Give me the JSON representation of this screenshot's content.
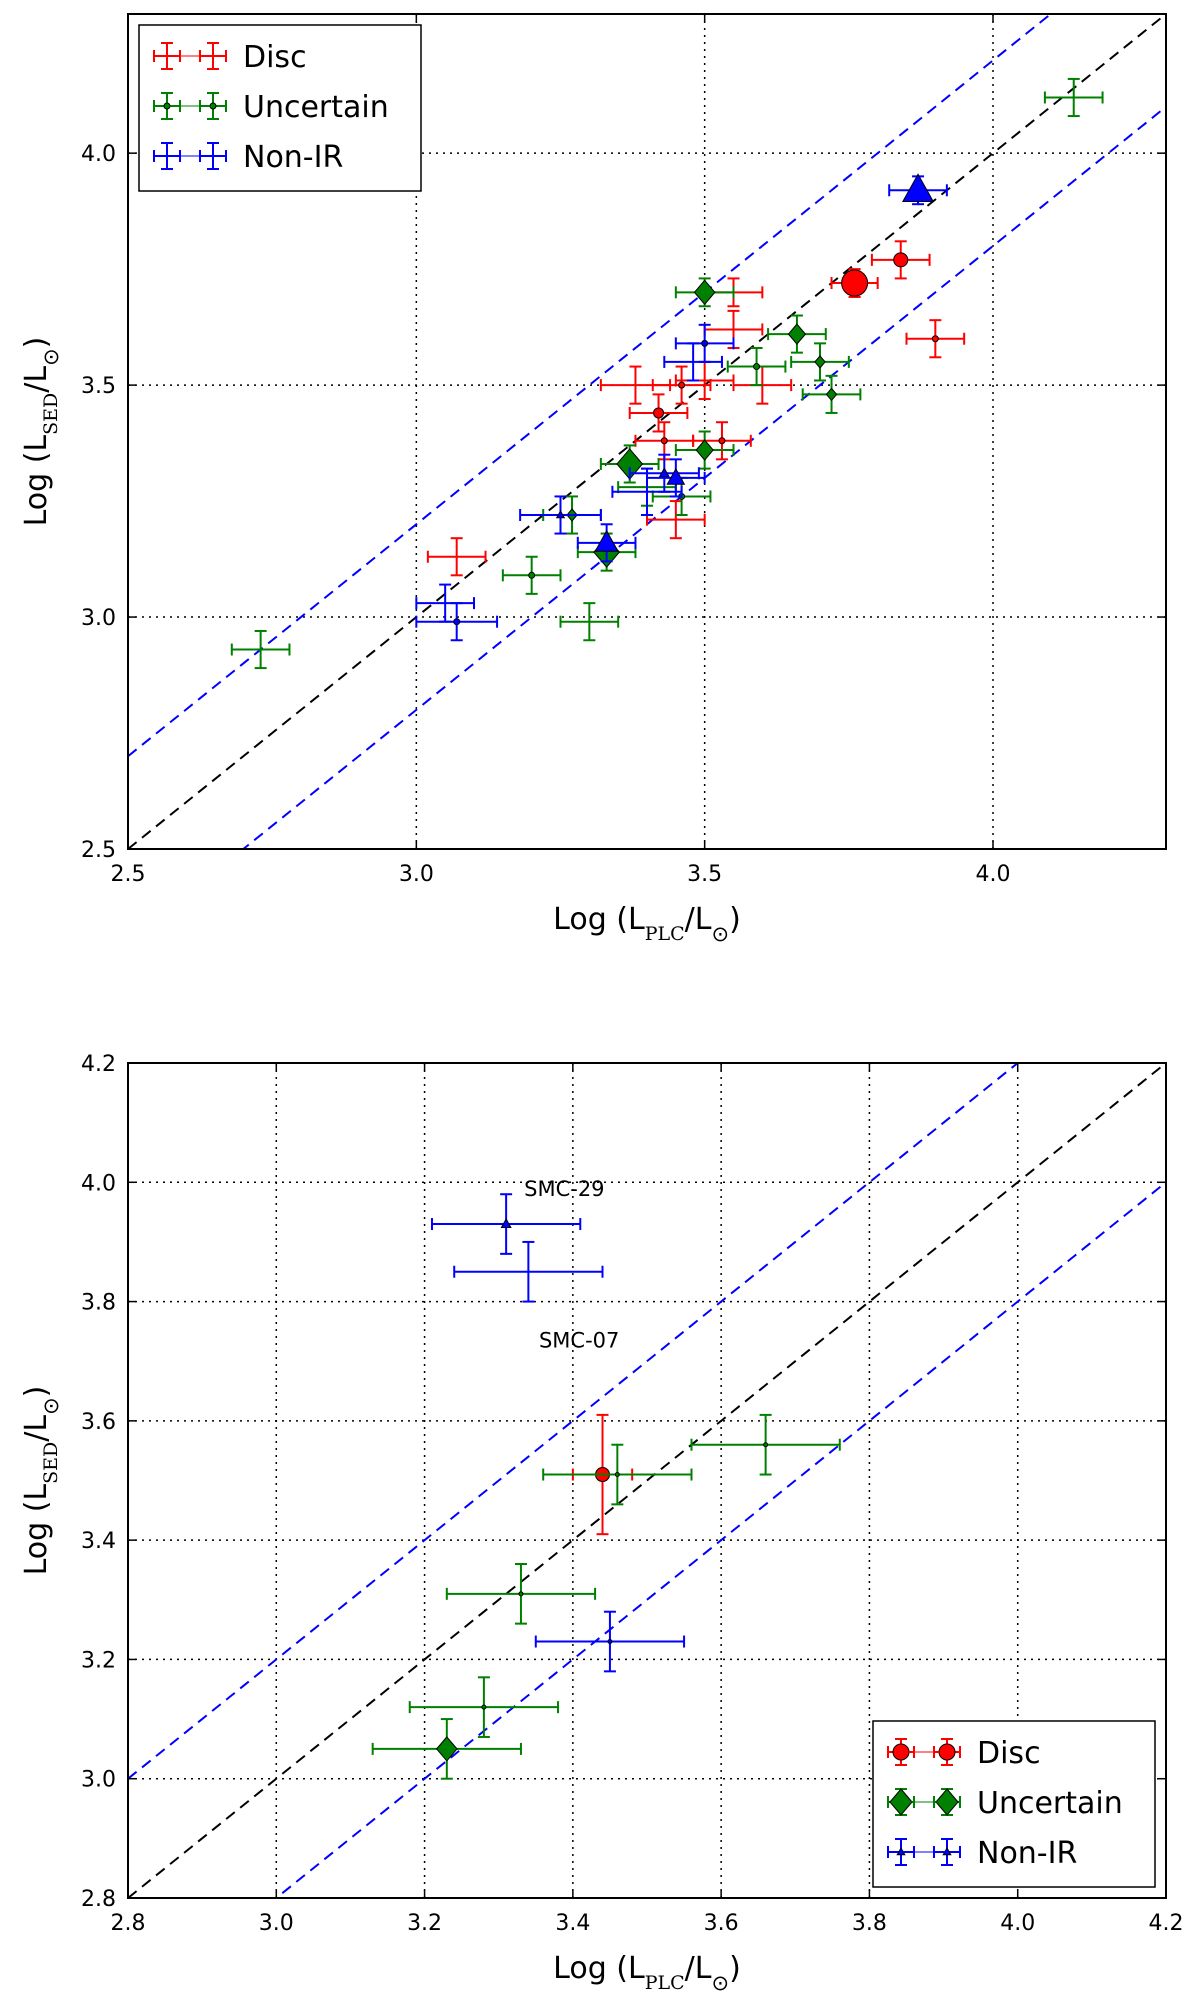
{
  "chart_data": [
    {
      "type": "scatter",
      "title": "",
      "xlabel": {
        "prefix": "Log (L",
        "sub": "PLC",
        "mid": "/L",
        "sun": "⊙",
        "suffix": ")"
      },
      "ylabel": {
        "prefix": "Log (L",
        "sub": "SED",
        "mid": "/L",
        "sun": "⊙",
        "suffix": ")"
      },
      "xlim": [
        2.5,
        4.3
      ],
      "ylim": [
        2.5,
        4.3
      ],
      "xticks": [
        2.5,
        3.0,
        3.5,
        4.0
      ],
      "xtick_labels": [
        "2.5",
        "3.0",
        "3.5",
        "4.0"
      ],
      "yticks": [
        2.5,
        3.0,
        3.5,
        4.0
      ],
      "ytick_labels": [
        "2.5",
        "3.0",
        "3.5",
        "4.0"
      ],
      "grid": "dotted",
      "legend_position": "top-left",
      "legend": [
        {
          "label": "Disc",
          "series": "disc",
          "marker": "plus",
          "color": "#ff0000"
        },
        {
          "label": "Uncertain",
          "series": "uncertain",
          "marker": "dot",
          "color": "#008000"
        },
        {
          "label": "Non-IR",
          "series": "nonir",
          "marker": "plus",
          "color": "#0000ff"
        }
      ],
      "reference_lines": [
        {
          "name": "equality-line",
          "offset": 0.0,
          "color": "#000000"
        },
        {
          "name": "upper-bound-line",
          "offset": 0.2,
          "color": "#0000ff"
        },
        {
          "name": "lower-bound-line",
          "offset": -0.2,
          "color": "#0000ff"
        }
      ],
      "series": [
        {
          "name": "disc",
          "color": "#ff0000",
          "points": [
            {
              "x": 3.07,
              "y": 3.13,
              "xerr": 0.05,
              "yerr": 0.04,
              "marker": "none",
              "size": 0
            },
            {
              "x": 3.38,
              "y": 3.5,
              "xerr": 0.06,
              "yerr": 0.04,
              "marker": "none",
              "size": 0
            },
            {
              "x": 3.42,
              "y": 3.44,
              "xerr": 0.05,
              "yerr": 0.04,
              "marker": "circle",
              "size": 5
            },
            {
              "x": 3.46,
              "y": 3.5,
              "xerr": 0.05,
              "yerr": 0.04,
              "marker": "dot",
              "size": 3
            },
            {
              "x": 3.43,
              "y": 3.38,
              "xerr": 0.05,
              "yerr": 0.04,
              "marker": "dot",
              "size": 3
            },
            {
              "x": 3.5,
              "y": 3.51,
              "xerr": 0.05,
              "yerr": 0.04,
              "marker": "none",
              "size": 0
            },
            {
              "x": 3.53,
              "y": 3.38,
              "xerr": 0.05,
              "yerr": 0.04,
              "marker": "dot",
              "size": 3
            },
            {
              "x": 3.55,
              "y": 3.62,
              "xerr": 0.05,
              "yerr": 0.04,
              "marker": "none",
              "size": 0
            },
            {
              "x": 3.55,
              "y": 3.7,
              "xerr": 0.05,
              "yerr": 0.03,
              "marker": "none",
              "size": 0
            },
            {
              "x": 3.45,
              "y": 3.21,
              "xerr": 0.05,
              "yerr": 0.04,
              "marker": "none",
              "size": 0
            },
            {
              "x": 3.6,
              "y": 3.5,
              "xerr": 0.05,
              "yerr": 0.04,
              "marker": "none",
              "size": 0
            },
            {
              "x": 3.76,
              "y": 3.72,
              "xerr": 0.04,
              "yerr": 0.03,
              "marker": "circle",
              "size": 13
            },
            {
              "x": 3.84,
              "y": 3.77,
              "xerr": 0.05,
              "yerr": 0.04,
              "marker": "circle",
              "size": 7
            },
            {
              "x": 3.9,
              "y": 3.6,
              "xerr": 0.05,
              "yerr": 0.04,
              "marker": "dot",
              "size": 3
            }
          ]
        },
        {
          "name": "uncertain",
          "color": "#008000",
          "points": [
            {
              "x": 2.73,
              "y": 2.93,
              "xerr": 0.05,
              "yerr": 0.04,
              "marker": "none",
              "size": 0
            },
            {
              "x": 3.2,
              "y": 3.09,
              "xerr": 0.05,
              "yerr": 0.04,
              "marker": "dot",
              "size": 3
            },
            {
              "x": 3.27,
              "y": 3.22,
              "xerr": 0.05,
              "yerr": 0.04,
              "marker": "diamond",
              "size": 6
            },
            {
              "x": 3.3,
              "y": 2.99,
              "xerr": 0.05,
              "yerr": 0.04,
              "marker": "none",
              "size": 0
            },
            {
              "x": 3.33,
              "y": 3.14,
              "xerr": 0.05,
              "yerr": 0.04,
              "marker": "diamond",
              "size": 15
            },
            {
              "x": 3.37,
              "y": 3.33,
              "xerr": 0.05,
              "yerr": 0.04,
              "marker": "diamond",
              "size": 15
            },
            {
              "x": 3.4,
              "y": 3.28,
              "xerr": 0.05,
              "yerr": 0.04,
              "marker": "none",
              "size": 0
            },
            {
              "x": 3.46,
              "y": 3.26,
              "xerr": 0.05,
              "yerr": 0.04,
              "marker": "dot",
              "size": 3
            },
            {
              "x": 3.5,
              "y": 3.36,
              "xerr": 0.05,
              "yerr": 0.04,
              "marker": "diamond",
              "size": 10
            },
            {
              "x": 3.5,
              "y": 3.7,
              "xerr": 0.05,
              "yerr": 0.03,
              "marker": "diamond",
              "size": 12
            },
            {
              "x": 3.59,
              "y": 3.54,
              "xerr": 0.05,
              "yerr": 0.04,
              "marker": "dot",
              "size": 3
            },
            {
              "x": 3.66,
              "y": 3.61,
              "xerr": 0.05,
              "yerr": 0.04,
              "marker": "diamond",
              "size": 10
            },
            {
              "x": 3.7,
              "y": 3.55,
              "xerr": 0.05,
              "yerr": 0.04,
              "marker": "diamond",
              "size": 6
            },
            {
              "x": 3.72,
              "y": 3.48,
              "xerr": 0.05,
              "yerr": 0.04,
              "marker": "diamond",
              "size": 6
            },
            {
              "x": 4.14,
              "y": 4.12,
              "xerr": 0.05,
              "yerr": 0.04,
              "marker": "none",
              "size": 0
            }
          ]
        },
        {
          "name": "nonir",
          "color": "#0000ff",
          "points": [
            {
              "x": 3.05,
              "y": 3.03,
              "xerr": 0.05,
              "yerr": 0.04,
              "marker": "none",
              "size": 0
            },
            {
              "x": 3.07,
              "y": 2.99,
              "xerr": 0.07,
              "yerr": 0.04,
              "marker": "dot",
              "size": 3
            },
            {
              "x": 3.25,
              "y": 3.22,
              "xerr": 0.07,
              "yerr": 0.04,
              "marker": "triangle",
              "size": 4
            },
            {
              "x": 3.33,
              "y": 3.16,
              "xerr": 0.05,
              "yerr": 0.04,
              "marker": "triangle",
              "size": 12
            },
            {
              "x": 3.4,
              "y": 3.27,
              "xerr": 0.06,
              "yerr": 0.05,
              "marker": "none",
              "size": 0
            },
            {
              "x": 3.43,
              "y": 3.31,
              "xerr": 0.06,
              "yerr": 0.04,
              "marker": "triangle",
              "size": 5
            },
            {
              "x": 3.45,
              "y": 3.3,
              "xerr": 0.05,
              "yerr": 0.04,
              "marker": "triangle",
              "size": 9
            },
            {
              "x": 3.48,
              "y": 3.55,
              "xerr": 0.05,
              "yerr": 0.04,
              "marker": "none",
              "size": 0
            },
            {
              "x": 3.5,
              "y": 3.59,
              "xerr": 0.05,
              "yerr": 0.04,
              "marker": "dot",
              "size": 3
            },
            {
              "x": 3.87,
              "y": 3.92,
              "xerr": 0.05,
              "yerr": 0.03,
              "marker": "triangle",
              "size": 16
            }
          ]
        }
      ]
    },
    {
      "type": "scatter",
      "title": "",
      "xlabel": {
        "prefix": "Log (L",
        "sub": "PLC",
        "mid": "/L",
        "sun": "⊙",
        "suffix": ")"
      },
      "ylabel": {
        "prefix": "Log (L",
        "sub": "SED",
        "mid": "/L",
        "sun": "⊙",
        "suffix": ")"
      },
      "xlim": [
        2.8,
        4.2
      ],
      "ylim": [
        2.8,
        4.2
      ],
      "xticks": [
        2.8,
        3.0,
        3.2,
        3.4,
        3.6,
        3.8,
        4.0,
        4.2
      ],
      "xtick_labels": [
        "2.8",
        "3.0",
        "3.2",
        "3.4",
        "3.6",
        "3.8",
        "4.0",
        "4.2"
      ],
      "yticks": [
        2.8,
        3.0,
        3.2,
        3.4,
        3.6,
        3.8,
        4.0,
        4.2
      ],
      "ytick_labels": [
        "2.8",
        "3.0",
        "3.2",
        "3.4",
        "3.6",
        "3.8",
        "4.0",
        "4.2"
      ],
      "grid": "dotted",
      "legend_position": "bottom-right",
      "legend": [
        {
          "label": "Disc",
          "series": "disc",
          "marker": "circle",
          "color": "#ff0000"
        },
        {
          "label": "Uncertain",
          "series": "uncertain",
          "marker": "diamond",
          "color": "#008000"
        },
        {
          "label": "Non-IR",
          "series": "nonir",
          "marker": "triangle",
          "color": "#0000ff"
        }
      ],
      "reference_lines": [
        {
          "name": "equality-line",
          "offset": 0.0,
          "color": "#000000"
        },
        {
          "name": "upper-bound-line",
          "offset": 0.2,
          "color": "#0000ff"
        },
        {
          "name": "lower-bound-line",
          "offset": -0.2,
          "color": "#0000ff"
        }
      ],
      "annotations": [
        {
          "text": "SMC-29",
          "x": 3.31,
          "y": 3.98
        },
        {
          "text": "SMC-07",
          "x": 3.33,
          "y": 3.8
        }
      ],
      "series": [
        {
          "name": "disc",
          "color": "#ff0000",
          "points": [
            {
              "x": 3.44,
              "y": 3.51,
              "xerr": 0.04,
              "yerr": 0.1,
              "marker": "circle",
              "size": 7
            }
          ]
        },
        {
          "name": "uncertain",
          "color": "#008000",
          "points": [
            {
              "x": 3.23,
              "y": 3.05,
              "xerr": 0.1,
              "yerr": 0.05,
              "marker": "diamond",
              "size": 12
            },
            {
              "x": 3.28,
              "y": 3.12,
              "xerr": 0.1,
              "yerr": 0.05,
              "marker": "dot",
              "size": 2
            },
            {
              "x": 3.33,
              "y": 3.31,
              "xerr": 0.1,
              "yerr": 0.05,
              "marker": "dot",
              "size": 2
            },
            {
              "x": 3.46,
              "y": 3.51,
              "xerr": 0.1,
              "yerr": 0.05,
              "marker": "dot",
              "size": 2
            },
            {
              "x": 3.66,
              "y": 3.56,
              "xerr": 0.1,
              "yerr": 0.05,
              "marker": "dot",
              "size": 2
            }
          ]
        },
        {
          "name": "nonir",
          "color": "#0000ff",
          "points": [
            {
              "x": 3.31,
              "y": 3.93,
              "xerr": 0.1,
              "yerr": 0.05,
              "marker": "triangle",
              "size": 5
            },
            {
              "x": 3.34,
              "y": 3.85,
              "xerr": 0.1,
              "yerr": 0.05,
              "marker": "none",
              "size": 0
            },
            {
              "x": 3.45,
              "y": 3.23,
              "xerr": 0.1,
              "yerr": 0.05,
              "marker": "dot",
              "size": 2
            }
          ]
        }
      ]
    }
  ]
}
